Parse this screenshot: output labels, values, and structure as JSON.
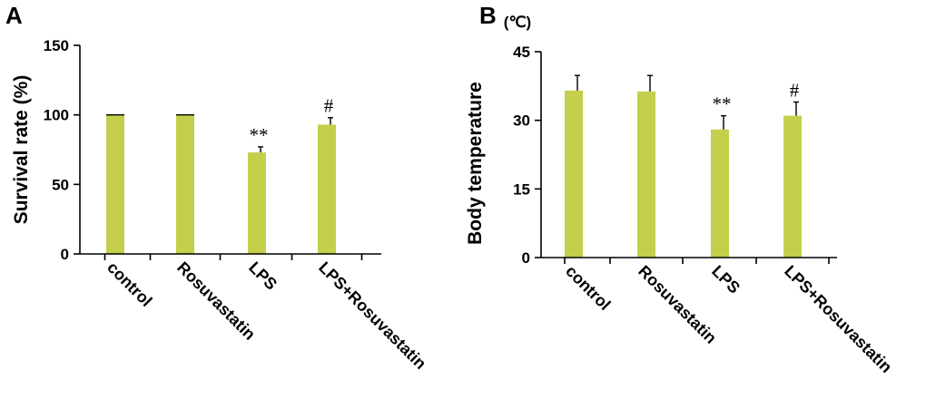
{
  "chart_data": [
    {
      "panel": "A",
      "type": "bar",
      "title": "",
      "xlabel": "",
      "ylabel": "Survival rate (%)",
      "unit_label": "",
      "ylim": [
        0,
        150
      ],
      "yticks": [
        0,
        50,
        100,
        150
      ],
      "categories": [
        "control",
        "Rosuvastatin",
        "LPS",
        "LPS+Rosuvastatin"
      ],
      "values": [
        100,
        100,
        73,
        93
      ],
      "errors": [
        0,
        0,
        4,
        5
      ],
      "significance": [
        "",
        "",
        "**",
        "#"
      ],
      "bar_color": "#c4cf4b"
    },
    {
      "panel": "B",
      "type": "bar",
      "title": "",
      "xlabel": "",
      "ylabel": "Body temperature",
      "unit_label": "(℃)",
      "ylim": [
        0,
        45
      ],
      "yticks": [
        0,
        15,
        30,
        45
      ],
      "categories": [
        "control",
        "Rosuvastatin",
        "LPS",
        "LPS+Rosuvastatin"
      ],
      "values": [
        36.5,
        36.3,
        28,
        31
      ],
      "errors": [
        3.3,
        3.5,
        3,
        3
      ],
      "significance": [
        "",
        "",
        "**",
        "#"
      ],
      "bar_color": "#c4cf4b"
    }
  ]
}
